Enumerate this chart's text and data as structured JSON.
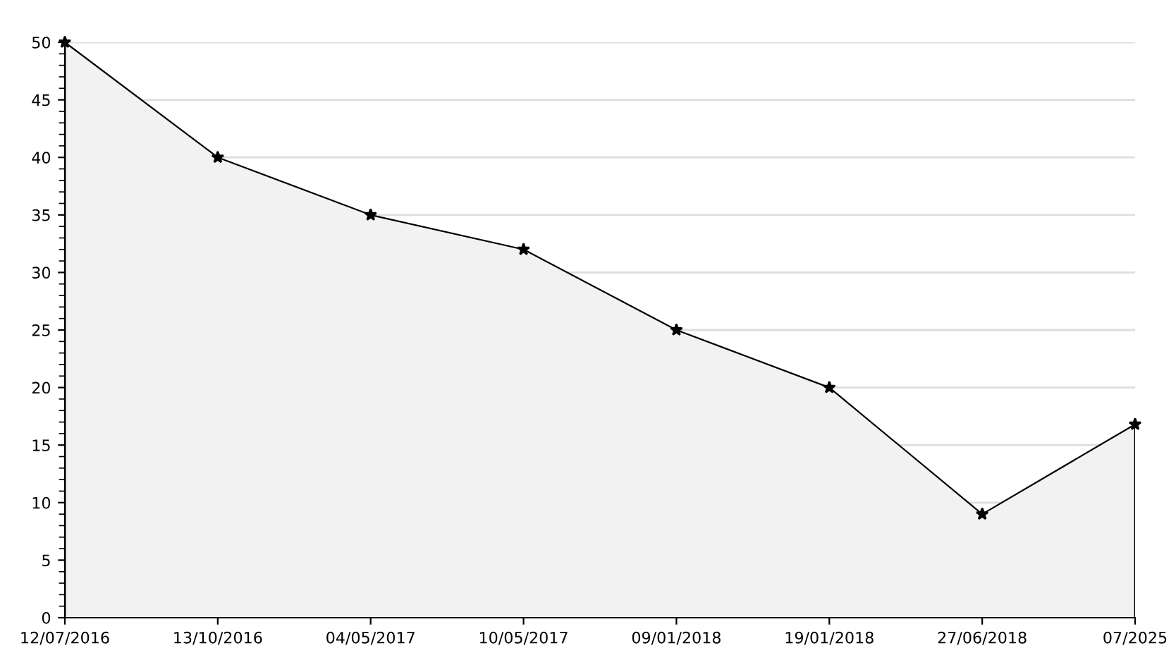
{
  "chart_data": {
    "type": "area",
    "categories": [
      "12/07/2016",
      "13/10/2016",
      "04/05/2017",
      "10/05/2017",
      "09/01/2018",
      "19/01/2018",
      "27/06/2018",
      "07/2025"
    ],
    "series": [
      {
        "color": "#000000",
        "values": [
          50,
          40,
          35,
          32,
          25,
          20,
          9,
          16.8
        ]
      }
    ],
    "ylim": [
      0,
      50
    ],
    "yticks": [
      0,
      5,
      10,
      15,
      20,
      25,
      30,
      35,
      40,
      45,
      50
    ],
    "grid": "y",
    "marker": "star",
    "line_style": "solid",
    "legend": false
  }
}
